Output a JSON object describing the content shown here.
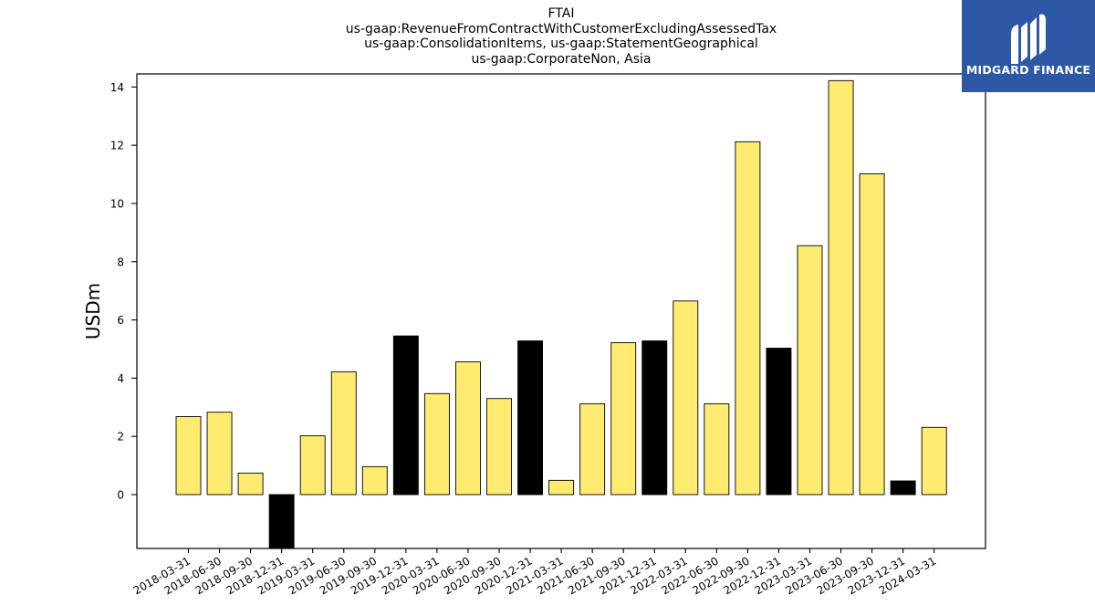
{
  "chart_data": {
    "type": "bar",
    "title_lines": [
      "FTAI",
      "us-gaap:RevenueFromContractWithCustomerExcludingAssessedTax",
      "us-gaap:ConsolidationItems, us-gaap:StatementGeographical",
      "us-gaap:CorporateNon, Asia"
    ],
    "xlabel": "",
    "ylabel": "USDm",
    "categories": [
      "2018-03-31",
      "2018-06-30",
      "2018-09-30",
      "2018-12-31",
      "2019-03-31",
      "2019-06-30",
      "2019-09-30",
      "2019-12-31",
      "2020-03-31",
      "2020-06-30",
      "2020-09-30",
      "2020-12-31",
      "2021-03-31",
      "2021-06-30",
      "2021-09-30",
      "2021-12-31",
      "2022-03-31",
      "2022-06-30",
      "2022-09-30",
      "2022-12-31",
      "2023-03-31",
      "2023-06-30",
      "2023-09-30",
      "2023-12-31",
      "2024-03-31"
    ],
    "values": [
      2.68,
      2.83,
      0.74,
      -1.9,
      2.02,
      4.22,
      0.96,
      5.45,
      3.47,
      4.56,
      3.3,
      5.28,
      0.49,
      3.12,
      5.22,
      5.28,
      6.65,
      3.12,
      12.12,
      5.03,
      8.55,
      14.22,
      11.02,
      0.47,
      2.31
    ],
    "bar_colors": [
      "#ffeb6f",
      "#ffeb6f",
      "#ffeb6f",
      "#000000",
      "#ffeb6f",
      "#ffeb6f",
      "#ffeb6f",
      "#000000",
      "#ffeb6f",
      "#ffeb6f",
      "#ffeb6f",
      "#000000",
      "#ffeb6f",
      "#ffeb6f",
      "#ffeb6f",
      "#000000",
      "#ffeb6f",
      "#ffeb6f",
      "#ffeb6f",
      "#000000",
      "#ffeb6f",
      "#ffeb6f",
      "#ffeb6f",
      "#000000",
      "#ffeb6f"
    ],
    "ylim": [
      -1.85,
      14.45
    ],
    "yticks": [
      0,
      2,
      4,
      6,
      8,
      10,
      12,
      14
    ],
    "grid": false,
    "legend": "none"
  },
  "logo": {
    "text": "MIDGARD FINANCE",
    "icon": "midgard-logo-icon",
    "background": "#2c58a6"
  }
}
